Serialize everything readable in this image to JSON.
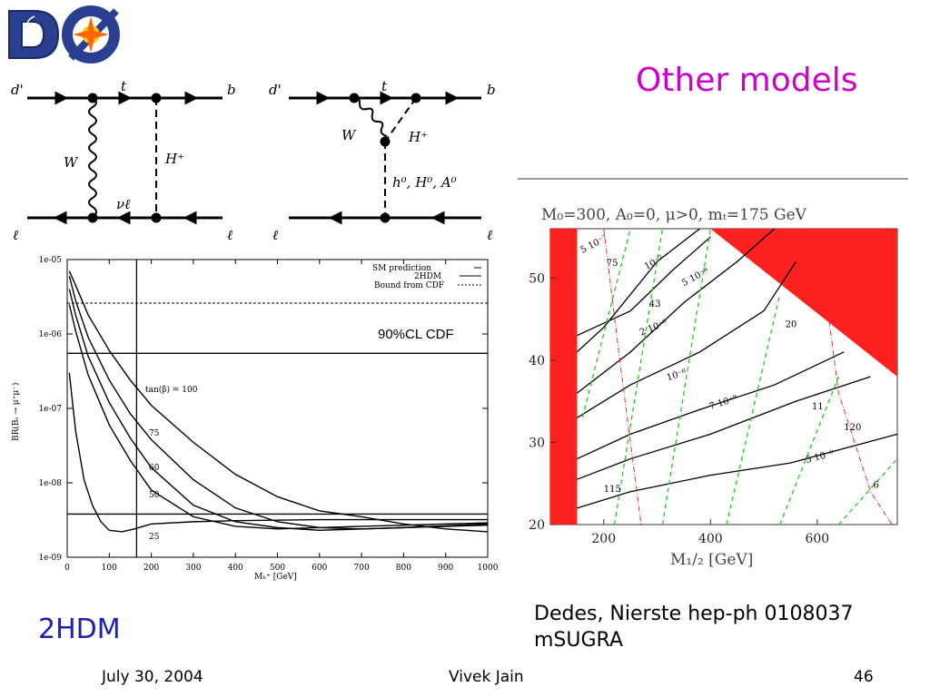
{
  "slide": {
    "title": "Other models",
    "left_label": "2HDM",
    "citation_line1": "Dedes, Nierste hep-ph 0108037",
    "citation_line2": "mSUGRA",
    "footer_date": "July 30, 2004",
    "footer_author": "Vivek Jain",
    "footer_page": "46",
    "logo_text": "DØ"
  },
  "diagrams": {
    "left": {
      "top_in": "d'",
      "top_mid": "t",
      "top_out": "b",
      "bottom_in": "ℓ",
      "bottom_mid": "νℓ",
      "bottom_out": "ℓ",
      "boson_wave": "W",
      "boson_dash": "H⁺"
    },
    "right": {
      "top_in": "d'",
      "top_mid": "t",
      "top_out": "b",
      "bottom_in": "ℓ",
      "bottom_out": "ℓ",
      "boson_wave": "W",
      "boson_dash": "H⁺",
      "neutral": "h⁰, H⁰, A⁰"
    }
  },
  "chart_data": [
    {
      "type": "line",
      "ylabel": "BR(Bₛ → μ⁺μ⁻)",
      "xlabel": "Mₕ⁺ [GeV]",
      "xlim": [
        0,
        1000
      ],
      "ylim_log10": [
        -9,
        -5
      ],
      "y_scale": "log",
      "x_ticks": [
        "0",
        "100",
        "200",
        "300",
        "400",
        "500",
        "600",
        "700",
        "800",
        "900",
        "1000"
      ],
      "y_ticks": [
        "1e-05",
        "1e-06",
        "1e-07",
        "1e-08",
        "1e-09"
      ],
      "legend": [
        "SM prediction",
        "2HDM",
        "Bound from CDF"
      ],
      "legend_position": "top-right",
      "annotation": "90%CL CDF",
      "curve_labels": [
        "tan(β) = 100",
        "75",
        "60",
        "50",
        "25"
      ],
      "series": [
        {
          "name": "tan(β) = 100",
          "x": [
            5,
            20,
            50,
            100,
            150,
            200,
            300,
            400,
            500,
            600,
            700,
            800,
            900,
            1000
          ],
          "y": [
            7e-06,
            4.5e-06,
            1.8e-06,
            6e-07,
            2.4e-07,
            1.1e-07,
            3.5e-08,
            1.3e-08,
            6.5e-09,
            4.2e-09,
            3.5e-09,
            2.8e-09,
            2.4e-09,
            2.2e-09
          ]
        },
        {
          "name": "75",
          "x": [
            5,
            20,
            50,
            100,
            150,
            200,
            300,
            400,
            500,
            600,
            700,
            800,
            1000
          ],
          "y": [
            6e-06,
            2.8e-06,
            9e-07,
            2.4e-07,
            8.5e-08,
            3.8e-08,
            1.1e-08,
            4.6e-09,
            3e-09,
            2.5e-09,
            2.4e-09,
            2.5e-09,
            2.7e-09
          ]
        },
        {
          "name": "60",
          "x": [
            5,
            20,
            50,
            100,
            150,
            200,
            300,
            400,
            500,
            600,
            800,
            1000
          ],
          "y": [
            4e-06,
            1.8e-06,
            5e-07,
            1.2e-07,
            4e-08,
            1.6e-08,
            5e-09,
            3e-09,
            2.5e-09,
            2.3e-09,
            2.5e-09,
            2.8e-09
          ]
        },
        {
          "name": "50",
          "x": [
            5,
            20,
            50,
            100,
            150,
            200,
            300,
            400,
            500,
            700,
            1000
          ],
          "y": [
            2.5e-06,
            1.1e-06,
            2.8e-07,
            6e-08,
            2e-08,
            8e-09,
            3.5e-09,
            2.6e-09,
            2.4e-09,
            2.6e-09,
            2.9e-09
          ]
        },
        {
          "name": "25",
          "x": [
            5,
            20,
            40,
            60,
            80,
            100,
            130,
            160,
            200,
            300,
            400,
            600,
            800,
            1000
          ],
          "y": [
            3e-07,
            5e-08,
            1.1e-08,
            5e-09,
            3e-09,
            2.3e-09,
            2.2e-09,
            2.4e-09,
            2.8e-09,
            3e-09,
            3.1e-09,
            3.2e-09,
            3.2e-09,
            3.2e-09
          ]
        }
      ],
      "sm_prediction": 3.8e-09,
      "cdf_bound": 2.6e-06,
      "cl90_cdf": 5.5e-07,
      "vertical_marker_x": 165
    },
    {
      "type": "line",
      "title": "M₀=300, A₀=0, μ>0, mₜ=175 GeV",
      "xlabel": "M₁/₂ [GeV]",
      "xlim": [
        100,
        750
      ],
      "ylim": [
        20,
        56
      ],
      "x_ticks": [
        "200",
        "400",
        "600"
      ],
      "y_ticks": [
        "20",
        "30",
        "40",
        "50"
      ],
      "excluded_region_color": "#ff2020",
      "contour_labels": [
        "5 10⁻⁷",
        "10⁻⁷",
        "5 10⁻⁸",
        "2 10⁻⁸",
        "10⁻⁸",
        "7 10⁻⁹",
        "5 10⁻⁹"
      ],
      "contour_values": [
        5e-07,
        1e-07,
        5e-08,
        2e-08,
        1e-08,
        7e-09,
        5e-09
      ],
      "green_labels": [
        "75",
        "43",
        "20",
        "11",
        "6"
      ],
      "red_labels": [
        "115",
        "120"
      ]
    }
  ]
}
